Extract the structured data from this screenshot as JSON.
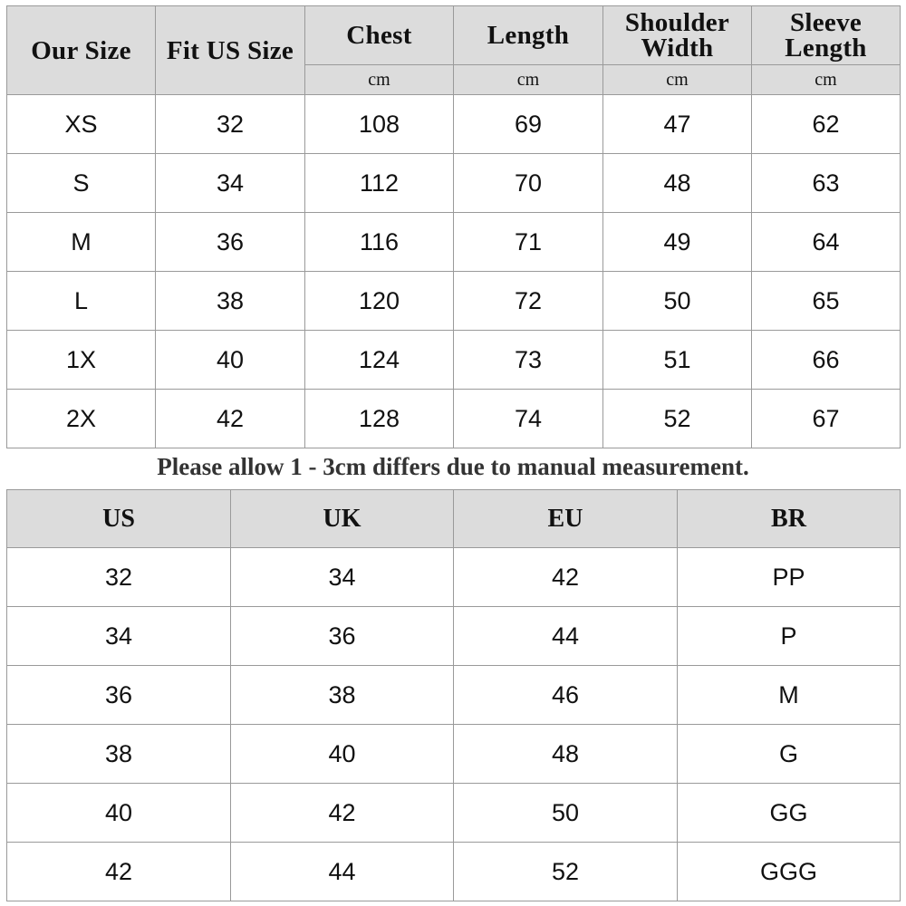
{
  "size_table": {
    "headers": [
      "Our Size",
      "Fit US Size",
      "Chest",
      "Length",
      "Shoulder Width",
      "Sleeve Length"
    ],
    "unit": "cm",
    "rows": [
      [
        "XS",
        "32",
        "108",
        "69",
        "47",
        "62"
      ],
      [
        "S",
        "34",
        "112",
        "70",
        "48",
        "63"
      ],
      [
        "M",
        "36",
        "116",
        "71",
        "49",
        "64"
      ],
      [
        "L",
        "38",
        "120",
        "72",
        "50",
        "65"
      ],
      [
        "1X",
        "40",
        "124",
        "73",
        "51",
        "66"
      ],
      [
        "2X",
        "42",
        "128",
        "74",
        "52",
        "67"
      ]
    ]
  },
  "note": "Please allow 1 - 3cm differs due to manual measurement.",
  "conversion_table": {
    "headers": [
      "US",
      "UK",
      "EU",
      "BR"
    ],
    "rows": [
      [
        "32",
        "34",
        "42",
        "PP"
      ],
      [
        "34",
        "36",
        "44",
        "P"
      ],
      [
        "36",
        "38",
        "46",
        "M"
      ],
      [
        "38",
        "40",
        "48",
        "G"
      ],
      [
        "40",
        "42",
        "50",
        "GG"
      ],
      [
        "42",
        "44",
        "52",
        "GGG"
      ]
    ]
  },
  "colors": {
    "header_bg": "#dcdcdc",
    "border": "#9a9a9a"
  }
}
